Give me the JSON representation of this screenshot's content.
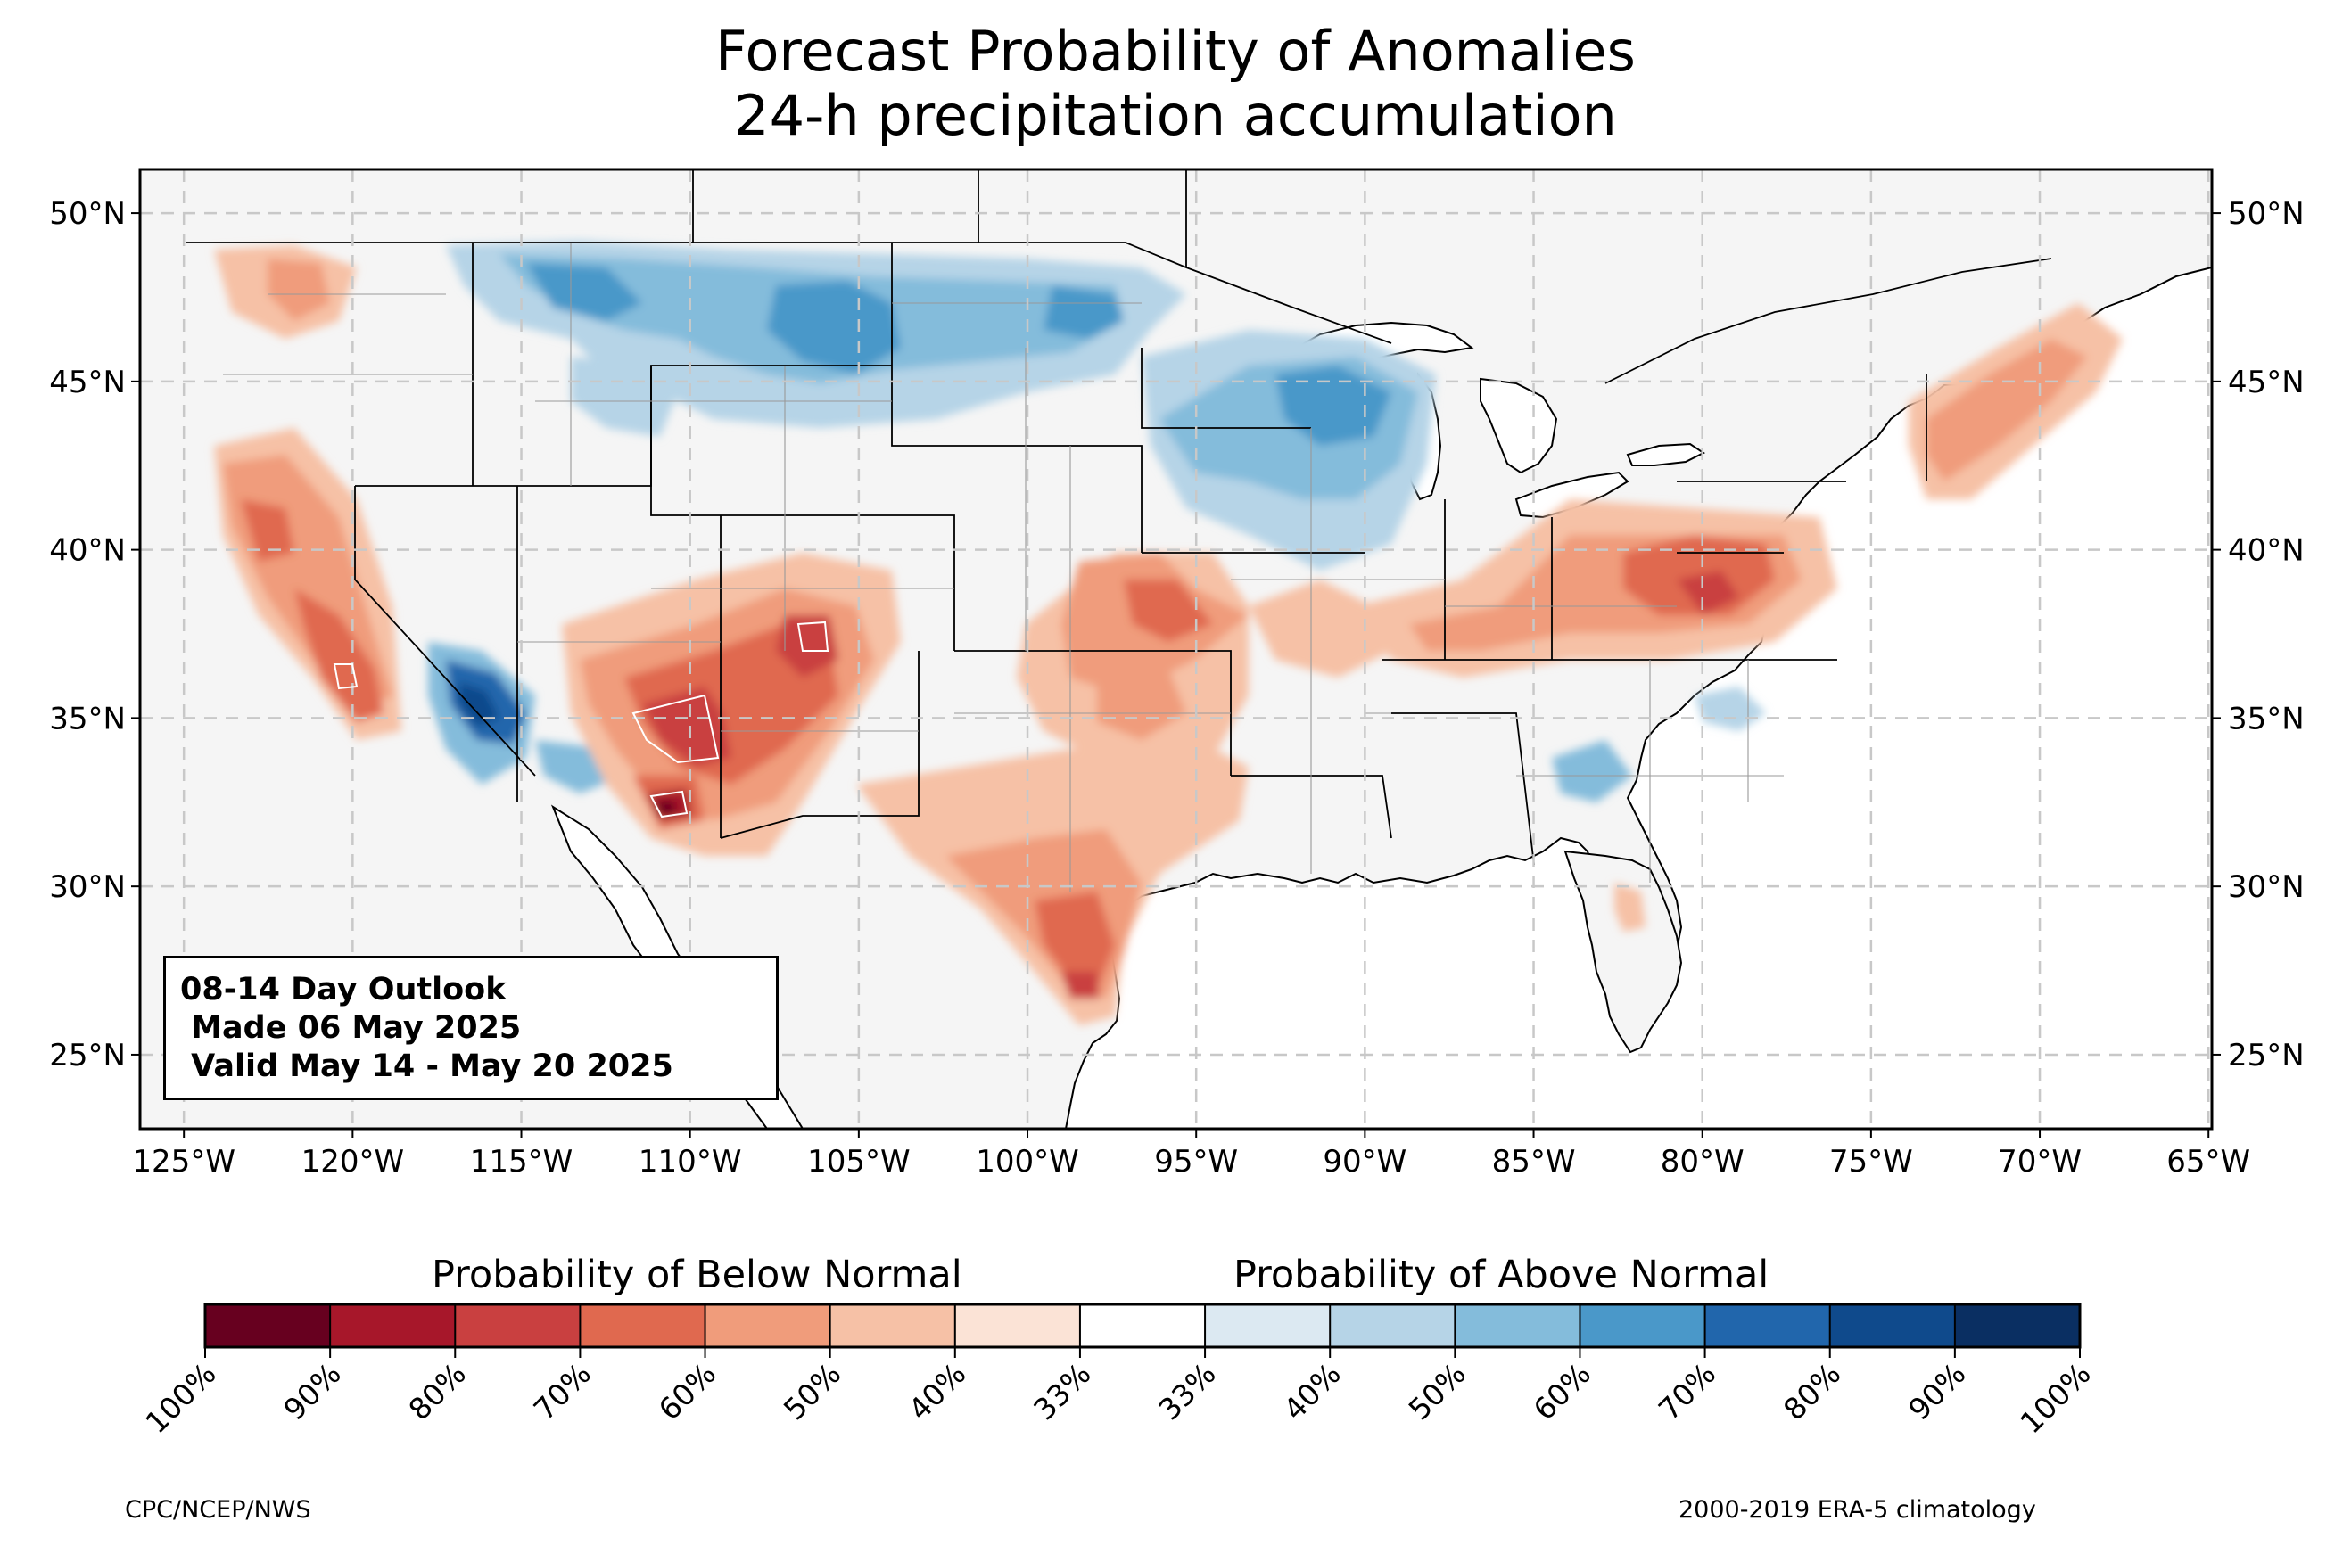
{
  "title": [
    "Forecast Probability of Anomalies",
    "24-h precipitation accumulation"
  ],
  "map": {
    "lon_ticks": [
      "125°W",
      "120°W",
      "115°W",
      "110°W",
      "105°W",
      "100°W",
      "95°W",
      "90°W",
      "85°W",
      "80°W",
      "75°W",
      "70°W",
      "65°W"
    ],
    "lat_ticks": [
      "50°N",
      "45°N",
      "40°N",
      "35°N",
      "30°N",
      "25°N"
    ],
    "extent": {
      "lon": [
        -126.3,
        -64.9
      ],
      "lat": [
        22.8,
        51.3
      ]
    },
    "land_color": "#f5f5f5",
    "grid": "dashed"
  },
  "info_box": [
    "08-14 Day Outlook",
    " Made 06 May 2025",
    " Valid May 14 - May 20 2025"
  ],
  "colorbar": {
    "below_label": "Probability of Below Normal",
    "above_label": "Probability of Above Normal",
    "colors": [
      "#67001f",
      "#a7172a",
      "#c94040",
      "#e0694f",
      "#f09c7b",
      "#f6c1a6",
      "#fbe3d6",
      "#ffffff",
      "#dce9f2",
      "#b6d4e7",
      "#84bcdb",
      "#4a98c9",
      "#2166ac",
      "#0f4a8c",
      "#0a2f62"
    ],
    "tick_labels": [
      "100%",
      "90%",
      "80%",
      "70%",
      "60%",
      "50%",
      "40%",
      "33%",
      "33%",
      "40%",
      "50%",
      "60%",
      "70%",
      "80%",
      "90%",
      "100%"
    ]
  },
  "footer": {
    "left": "CPC/NCEP/NWS",
    "right": "2000-2019 ERA-5 climatology"
  }
}
